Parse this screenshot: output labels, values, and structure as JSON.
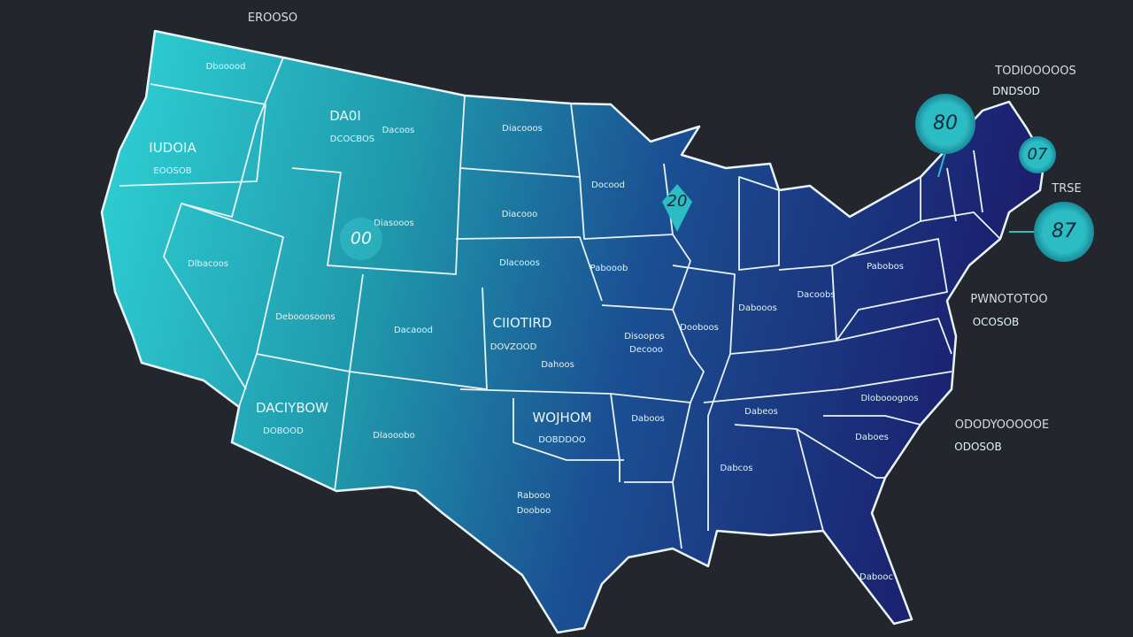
{
  "title_top": "EROOSO",
  "regions": [
    {
      "label": "Dbooood"
    },
    {
      "label": "DA0I",
      "sub": "DCOCBOS"
    },
    {
      "label": "IUDOIA",
      "sub": "EOOSOB"
    },
    {
      "label": "Dacoos"
    },
    {
      "label": "Diacooos"
    },
    {
      "label": "Docood"
    },
    {
      "label": "Diacooo"
    },
    {
      "label": "Diasooos"
    },
    {
      "label": "Dlbacoos"
    },
    {
      "label": "Dlacooos"
    },
    {
      "label": "Pabooob"
    },
    {
      "label": "Pabobos"
    },
    {
      "label": "Debooosoons"
    },
    {
      "label": "Dacaood"
    },
    {
      "label": "CIIOTIRD",
      "sub": "DOVZOOD"
    },
    {
      "label": "Dahoos"
    },
    {
      "label": "Disoopos",
      "sub": "Decooo"
    },
    {
      "label": "Dooboos"
    },
    {
      "label": "Dabooos"
    },
    {
      "label": "Dacoobs"
    },
    {
      "label": "DACIYBOW",
      "sub": "DOBOOD"
    },
    {
      "label": "Dlaooobo"
    },
    {
      "label": "WOJHOM",
      "sub": "DOBDDOO"
    },
    {
      "label": "Daboos"
    },
    {
      "label": "Dabeos"
    },
    {
      "label": "Dlobooogoos"
    },
    {
      "label": "Daboes"
    },
    {
      "label": "Dabcos"
    },
    {
      "label": "Rabooo",
      "sub": "Dooboo"
    },
    {
      "label": "Dabooc"
    }
  ],
  "side_notes": [
    {
      "label": "TODIOOOOOS",
      "sub": "DNDSOD"
    },
    {
      "label": "TRSE"
    },
    {
      "label": "PWNOTOTOO",
      "sub": "OCOSOB"
    },
    {
      "label": "ODODYOOOOOE",
      "sub": "ODOSOB"
    }
  ],
  "markers": [
    "80",
    "07",
    "87",
    "20",
    "00"
  ]
}
